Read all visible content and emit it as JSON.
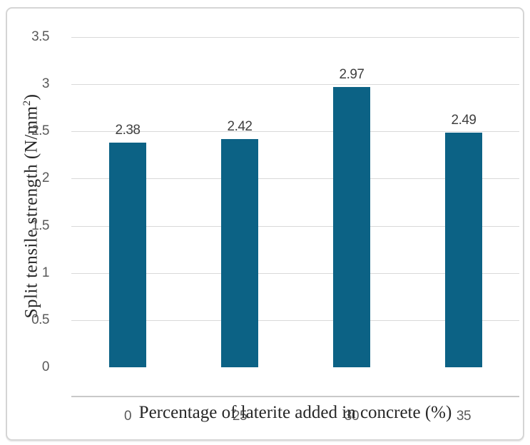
{
  "chart_data": {
    "type": "bar",
    "categories": [
      "0",
      "25",
      "30",
      "35"
    ],
    "values": [
      2.38,
      2.42,
      2.97,
      2.49
    ],
    "data_labels": [
      "2.38",
      "2.42",
      "2.97",
      "2.49"
    ],
    "title": "",
    "xlabel": "Percentage of laterite added in concrete (%)",
    "ylabel_main": "Split tensile strength (N/mm",
    "ylabel_sup": "2",
    "ylabel_close": ")",
    "ylim": [
      0,
      3.5
    ],
    "yticks": [
      "0",
      "0.5",
      "1",
      "1.5",
      "2",
      "2.5",
      "3",
      "3.5"
    ],
    "grid": true,
    "legend_position": "none",
    "bar_color": "#0c6285",
    "gridline_color": "#d9d9d9",
    "axis_line_color": "#c9c9c9",
    "tick_label_color": "#595959",
    "data_label_color": "#404040",
    "axis_title_color": "#262626",
    "frame_border_color": "#d5d5d5"
  }
}
